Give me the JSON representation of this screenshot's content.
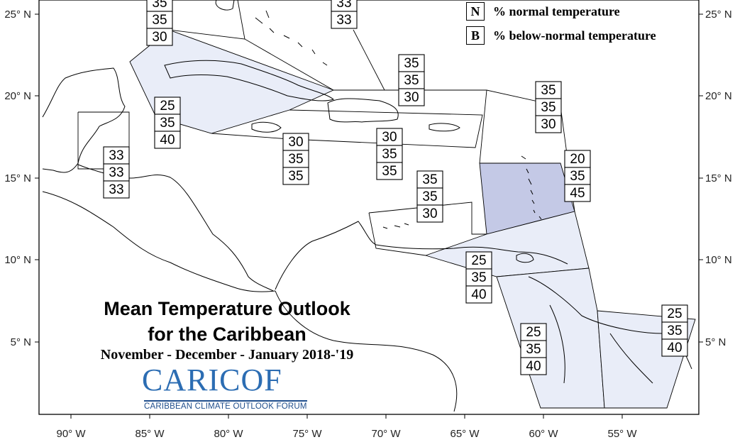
{
  "map": {
    "title_line1": "Mean Temperature Outlook",
    "title_line2": "for the Caribbean",
    "subtitle": "November - December - January 2018-'19",
    "logo_text": "CARICOF",
    "logo_subtitle": "CARIBBEAN CLIMATE OUTLOOK FORUM",
    "legend": [
      {
        "key": "N",
        "label": "% normal temperature"
      },
      {
        "key": "B",
        "label": "% below-normal temperature"
      }
    ],
    "lat_labels": [
      "25° N",
      "20° N",
      "15° N",
      "10° N",
      "5° N"
    ],
    "lon_labels": [
      "90° W",
      "85° W",
      "80° W",
      "75° W",
      "70° W",
      "65° W",
      "60° W",
      "55° W"
    ],
    "colors": {
      "light_fill": "#e9edf8",
      "dark_fill": "#c4c9e6",
      "coast": "#000000",
      "logo": "#2c6db3"
    },
    "regions": [
      {
        "name": "bahamas-north",
        "values": [
          "35",
          "35",
          "30"
        ]
      },
      {
        "name": "turks-caicos",
        "values": [
          "33",
          "33"
        ]
      },
      {
        "name": "western-cuba",
        "values": [
          "25",
          "35",
          "40"
        ]
      },
      {
        "name": "belize",
        "values": [
          "33",
          "33",
          "33"
        ]
      },
      {
        "name": "jamaica",
        "values": [
          "30",
          "35",
          "35"
        ]
      },
      {
        "name": "hispaniola",
        "values": [
          "30",
          "35",
          "35"
        ]
      },
      {
        "name": "puerto-rico-north",
        "values": [
          "35",
          "35",
          "30"
        ]
      },
      {
        "name": "leeward-islands",
        "values": [
          "35",
          "35",
          "30"
        ]
      },
      {
        "name": "windward-islands",
        "values": [
          "20",
          "35",
          "45"
        ]
      },
      {
        "name": "abc-islands",
        "values": [
          "35",
          "35",
          "30"
        ]
      },
      {
        "name": "trinidad",
        "values": [
          "25",
          "35",
          "40"
        ]
      },
      {
        "name": "guyana",
        "values": [
          "25",
          "35",
          "40"
        ]
      },
      {
        "name": "french-guiana",
        "values": [
          "25",
          "35",
          "40"
        ]
      }
    ]
  }
}
